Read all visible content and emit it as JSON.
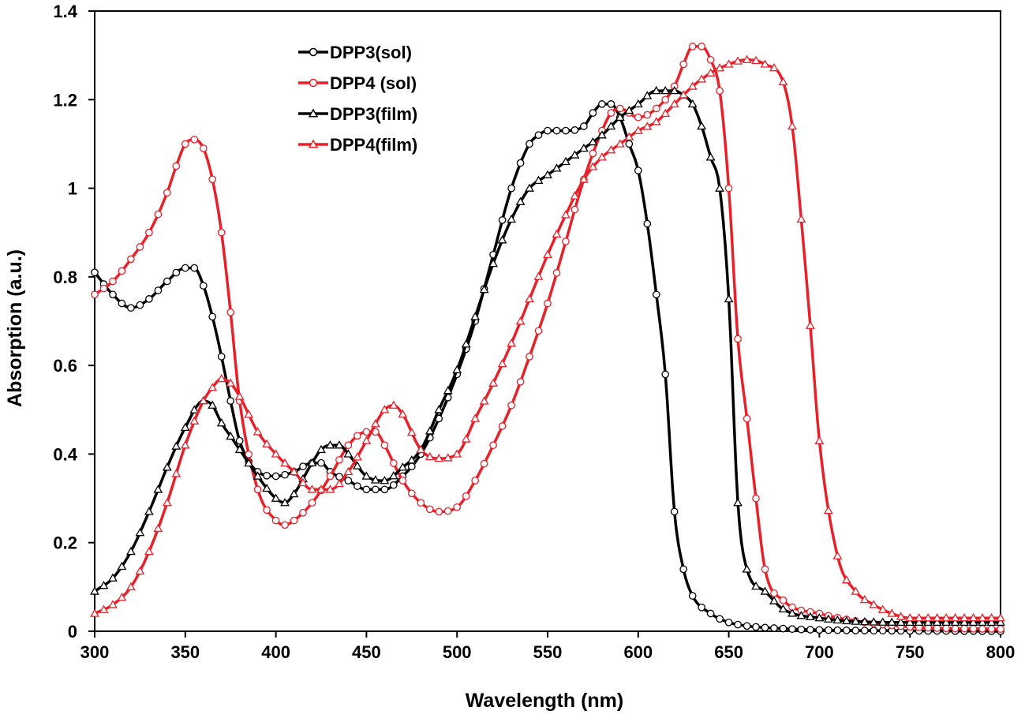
{
  "chart_data": {
    "type": "line",
    "title": "",
    "xlabel": "Wavelength (nm)",
    "ylabel": "Absorption (a.u.)",
    "xlim": [
      300,
      800
    ],
    "ylim": [
      0,
      1.4
    ],
    "x_ticks": [
      "300",
      "350",
      "400",
      "450",
      "500",
      "550",
      "600",
      "650",
      "700",
      "750",
      "800"
    ],
    "y_ticks": [
      "0",
      "0.2",
      "0.4",
      "0.6",
      "0.8",
      "1",
      "1.2",
      "1.4"
    ],
    "grid": false,
    "legend_position": "top-left",
    "series": [
      {
        "name": "DPP3(sol)",
        "color": "#000000",
        "marker": "circle",
        "x": [
          300,
          310,
          320,
          330,
          340,
          350,
          355,
          360,
          365,
          370,
          375,
          380,
          390,
          400,
          410,
          420,
          425,
          430,
          440,
          450,
          460,
          470,
          480,
          490,
          500,
          510,
          520,
          530,
          540,
          545,
          550,
          560,
          570,
          575,
          580,
          585,
          590,
          595,
          600,
          605,
          610,
          615,
          620,
          625,
          630,
          640,
          650,
          660,
          680,
          700,
          750,
          800
        ],
        "y": [
          0.81,
          0.76,
          0.73,
          0.75,
          0.79,
          0.82,
          0.82,
          0.78,
          0.71,
          0.62,
          0.52,
          0.43,
          0.36,
          0.35,
          0.36,
          0.38,
          0.38,
          0.36,
          0.34,
          0.32,
          0.32,
          0.35,
          0.4,
          0.48,
          0.58,
          0.7,
          0.85,
          1.0,
          1.1,
          1.12,
          1.13,
          1.13,
          1.14,
          1.17,
          1.19,
          1.19,
          1.16,
          1.1,
          1.04,
          0.92,
          0.76,
          0.58,
          0.27,
          0.14,
          0.08,
          0.04,
          0.02,
          0.012,
          0.006,
          0.003,
          0.001,
          0.0
        ]
      },
      {
        "name": "DPP4 (sol)",
        "color": "#e8202a",
        "marker": "circle",
        "x": [
          300,
          310,
          320,
          330,
          340,
          345,
          350,
          355,
          360,
          365,
          370,
          375,
          380,
          390,
          400,
          405,
          410,
          420,
          430,
          440,
          450,
          455,
          460,
          470,
          480,
          490,
          500,
          510,
          520,
          530,
          540,
          550,
          560,
          570,
          580,
          585,
          590,
          600,
          610,
          620,
          625,
          630,
          635,
          640,
          645,
          650,
          655,
          660,
          665,
          670,
          680,
          700,
          750,
          800
        ],
        "y": [
          0.76,
          0.79,
          0.84,
          0.9,
          0.99,
          1.05,
          1.1,
          1.11,
          1.09,
          1.02,
          0.9,
          0.72,
          0.52,
          0.32,
          0.25,
          0.24,
          0.25,
          0.29,
          0.35,
          0.42,
          0.45,
          0.45,
          0.42,
          0.34,
          0.29,
          0.27,
          0.28,
          0.34,
          0.42,
          0.51,
          0.62,
          0.74,
          0.88,
          1.02,
          1.13,
          1.17,
          1.18,
          1.16,
          1.18,
          1.23,
          1.28,
          1.32,
          1.32,
          1.29,
          1.22,
          1.0,
          0.66,
          0.48,
          0.3,
          0.14,
          0.07,
          0.04,
          0.01,
          0.005
        ]
      },
      {
        "name": "DPP3(film)",
        "color": "#000000",
        "marker": "triangle",
        "x": [
          300,
          310,
          320,
          330,
          340,
          350,
          360,
          365,
          370,
          375,
          380,
          390,
          400,
          405,
          410,
          420,
          425,
          430,
          435,
          440,
          450,
          460,
          470,
          480,
          490,
          500,
          510,
          520,
          530,
          540,
          550,
          560,
          570,
          580,
          590,
          600,
          610,
          620,
          625,
          630,
          635,
          640,
          645,
          650,
          655,
          660,
          670,
          680,
          700,
          750,
          800
        ],
        "y": [
          0.09,
          0.12,
          0.18,
          0.27,
          0.37,
          0.46,
          0.52,
          0.51,
          0.47,
          0.44,
          0.41,
          0.35,
          0.3,
          0.29,
          0.31,
          0.38,
          0.41,
          0.42,
          0.42,
          0.4,
          0.35,
          0.34,
          0.37,
          0.41,
          0.5,
          0.59,
          0.71,
          0.83,
          0.93,
          1.0,
          1.03,
          1.06,
          1.09,
          1.12,
          1.16,
          1.19,
          1.22,
          1.22,
          1.21,
          1.19,
          1.14,
          1.07,
          1.0,
          0.75,
          0.29,
          0.14,
          0.09,
          0.05,
          0.03,
          0.02,
          0.02
        ]
      },
      {
        "name": "DPP4(film)",
        "color": "#e8202a",
        "marker": "triangle",
        "x": [
          300,
          310,
          320,
          330,
          340,
          350,
          360,
          365,
          370,
          375,
          380,
          390,
          400,
          410,
          420,
          430,
          440,
          450,
          460,
          465,
          470,
          480,
          490,
          500,
          510,
          520,
          530,
          540,
          550,
          560,
          570,
          580,
          590,
          600,
          610,
          620,
          630,
          640,
          650,
          660,
          670,
          680,
          685,
          690,
          695,
          700,
          710,
          720,
          730,
          740,
          750,
          800
        ],
        "y": [
          0.04,
          0.06,
          0.1,
          0.18,
          0.29,
          0.42,
          0.52,
          0.55,
          0.57,
          0.56,
          0.53,
          0.45,
          0.4,
          0.36,
          0.32,
          0.32,
          0.36,
          0.43,
          0.5,
          0.51,
          0.49,
          0.41,
          0.39,
          0.4,
          0.48,
          0.56,
          0.65,
          0.75,
          0.85,
          0.94,
          1.02,
          1.07,
          1.1,
          1.13,
          1.15,
          1.19,
          1.23,
          1.26,
          1.28,
          1.29,
          1.28,
          1.24,
          1.14,
          0.93,
          0.69,
          0.43,
          0.17,
          0.09,
          0.06,
          0.04,
          0.03,
          0.03
        ]
      }
    ]
  }
}
